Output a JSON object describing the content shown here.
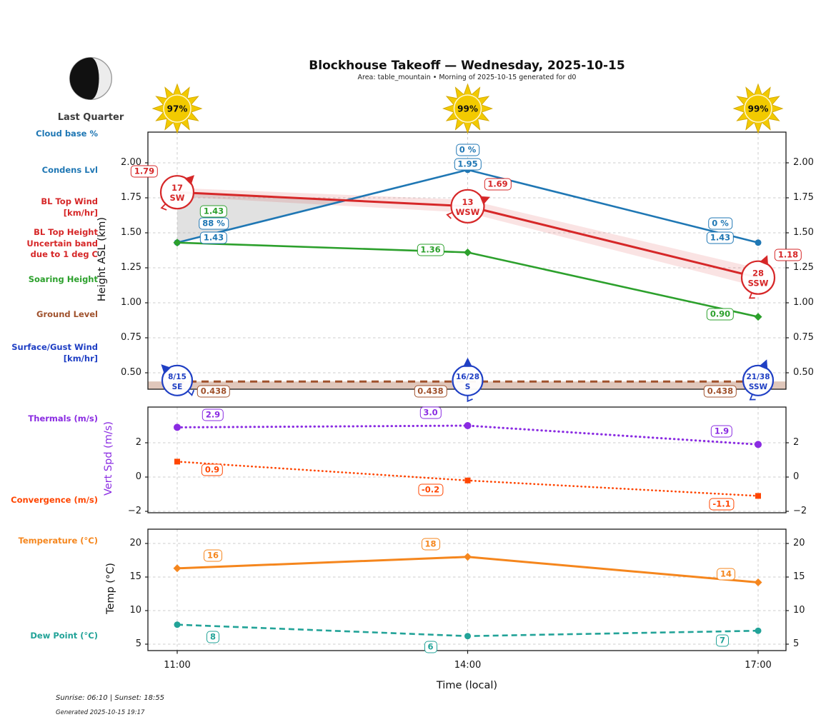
{
  "colors": {
    "blue": "#1f77b4",
    "red": "#d62728",
    "green": "#2ca02c",
    "brown": "#a0522d",
    "surfblue": "#1f3fc4",
    "purple": "#8a2be2",
    "orangered": "#ff4500",
    "orange": "#f5861d",
    "teal": "#22a398",
    "sun": "#f2ca00",
    "grid": "#cccccc"
  },
  "header": {
    "title": "Blockhouse Takeoff — Wednesday, 2025-10-15",
    "subtitle": "Area: table_mountain • Morning of 2025-10-15 generated for d0"
  },
  "moon": {
    "label": "Last Quarter"
  },
  "suns": [
    {
      "pct": "97%"
    },
    {
      "pct": "99%"
    },
    {
      "pct": "99%"
    }
  ],
  "side_labels": [
    {
      "id": "cloud-base",
      "lines": [
        "Cloud base %"
      ],
      "color": "blue"
    },
    {
      "id": "condens-lvl",
      "lines": [
        "Condens Lvl"
      ],
      "color": "blue"
    },
    {
      "id": "bl-top-wind",
      "lines": [
        "BL Top Wind",
        "[km/hr]"
      ],
      "color": "red"
    },
    {
      "id": "bl-top-height",
      "lines": [
        "BL Top Height",
        "Uncertain band",
        "due to 1 deg C"
      ],
      "color": "red"
    },
    {
      "id": "soaring-height",
      "lines": [
        "Soaring Height"
      ],
      "color": "green"
    },
    {
      "id": "ground-level",
      "lines": [
        "Ground Level"
      ],
      "color": "brown"
    },
    {
      "id": "surface-gust-wind",
      "lines": [
        "Surface/Gust Wind",
        "[km/hr]"
      ],
      "color": "surfblue"
    },
    {
      "id": "thermals",
      "lines": [
        "Thermals (m/s)"
      ],
      "color": "purple"
    },
    {
      "id": "convergence",
      "lines": [
        "Convergence (m/s)"
      ],
      "color": "orangered"
    },
    {
      "id": "temperature",
      "lines": [
        "Temperature (°C)"
      ],
      "color": "orange"
    },
    {
      "id": "dew-point",
      "lines": [
        "Dew Point (°C)"
      ],
      "color": "teal"
    }
  ],
  "axes": {
    "x": {
      "label": "Time (local)",
      "ticks": [
        "11:00",
        "14:00",
        "17:00"
      ]
    },
    "height": {
      "label": "Height ASL (km)",
      "tick_labels": [
        "2.00",
        "1.75",
        "1.50",
        "1.25",
        "1.00",
        "0.75",
        "0.50"
      ],
      "tick_values": [
        2.0,
        1.75,
        1.5,
        1.25,
        1.0,
        0.75,
        0.5
      ],
      "ylim": [
        0.38,
        2.22
      ],
      "grid": true
    },
    "vert": {
      "label": "Vert Spd (m/s)",
      "tick_labels": [
        "2",
        "0",
        "−2"
      ],
      "tick_values": [
        2,
        0,
        -2
      ],
      "ylim": [
        -2.1,
        4.1
      ],
      "grid": true
    },
    "temp": {
      "label": "Temp (°C)",
      "tick_labels": [
        "20",
        "15",
        "10",
        "5"
      ],
      "tick_values": [
        20,
        15,
        10,
        5
      ],
      "ylim": [
        4.0,
        22.1
      ],
      "grid": true
    }
  },
  "chart_data": [
    {
      "type": "line",
      "panel": "height",
      "x": [
        "11:00",
        "14:00",
        "17:00"
      ],
      "series": [
        {
          "name": "Condens Lvl",
          "color": "blue",
          "style": "solid",
          "marker": "circle",
          "values": [
            1.43,
            1.95,
            1.43
          ],
          "labels": [
            "1.43",
            "1.95",
            "1.43"
          ]
        },
        {
          "name": "Cloud base %",
          "color": "blue",
          "style": "labels-only",
          "anchor_series": 0,
          "values": [
            88,
            0,
            0
          ],
          "labels": [
            "88 %",
            "0 %",
            "0 %"
          ]
        },
        {
          "name": "BL Top Height",
          "color": "red",
          "style": "solid",
          "uncertainty_band": true,
          "values": [
            1.79,
            1.69,
            1.18
          ],
          "labels": [
            "1.79",
            "1.69",
            "1.18"
          ]
        },
        {
          "name": "Soaring Height",
          "color": "green",
          "style": "solid",
          "marker": "diamond",
          "values": [
            1.43,
            1.36,
            0.9
          ],
          "labels": [
            "1.43",
            "1.36",
            "0.90"
          ]
        },
        {
          "name": "Ground Level",
          "color": "brown",
          "style": "dashed",
          "values": [
            0.438,
            0.438,
            0.438
          ],
          "labels": [
            "0.438",
            "0.438",
            "0.438"
          ]
        }
      ],
      "bl_top_wind": [
        {
          "speed": "17",
          "dir": "SW"
        },
        {
          "speed": "13",
          "dir": "WSW"
        },
        {
          "speed": "28",
          "dir": "SSW"
        }
      ],
      "surface_gust_wind": [
        {
          "speed": "8/15",
          "dir": "SE"
        },
        {
          "speed": "16/28",
          "dir": "S"
        },
        {
          "speed": "21/38",
          "dir": "SSW"
        }
      ]
    },
    {
      "type": "line",
      "panel": "vert",
      "x": [
        "11:00",
        "14:00",
        "17:00"
      ],
      "series": [
        {
          "name": "Thermals (m/s)",
          "color": "purple",
          "style": "dotted",
          "marker": "circle",
          "values": [
            2.9,
            3.0,
            1.9
          ],
          "labels": [
            "2.9",
            "3.0",
            "1.9"
          ]
        },
        {
          "name": "Convergence (m/s)",
          "color": "orangered",
          "style": "dotted",
          "marker": "square",
          "values": [
            0.9,
            -0.2,
            -1.1
          ],
          "labels": [
            "0.9",
            "-0.2",
            "-1.1"
          ]
        }
      ]
    },
    {
      "type": "line",
      "panel": "temp",
      "x": [
        "11:00",
        "14:00",
        "17:00"
      ],
      "series": [
        {
          "name": "Temperature (°C)",
          "color": "orange",
          "style": "solid",
          "marker": "diamond",
          "values": [
            16.3,
            18.0,
            14.2
          ],
          "labels": [
            "16",
            "18",
            "14"
          ]
        },
        {
          "name": "Dew Point (°C)",
          "color": "teal",
          "style": "dashed",
          "marker": "circle",
          "values": [
            7.9,
            6.2,
            7.0
          ],
          "labels": [
            "8",
            "6",
            "7"
          ]
        }
      ]
    }
  ],
  "footer": {
    "sun_times": "Sunrise: 06:10 | Sunset: 18:55",
    "generated": "Generated 2025-10-15 19:17"
  }
}
